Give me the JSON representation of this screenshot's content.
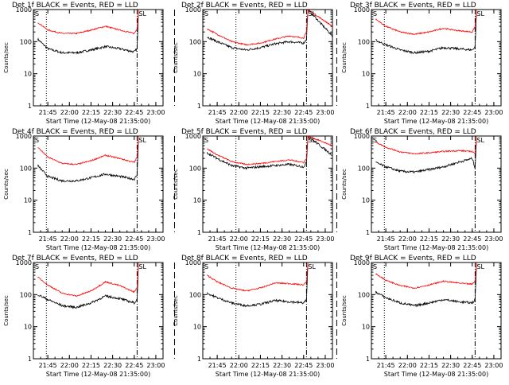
{
  "figure": {
    "panels": [
      {
        "title": "Det 1f BLACK = Events, RED = LLD",
        "ylabel": "Counts/sec",
        "xlabel": "Start Time (12-May-08 21:35:00)"
      },
      {
        "title": "Det 2f BLACK = Events, RED = LLD",
        "ylabel": "Counts/sec",
        "xlabel": "Start Time (12-May-08 21:35:00)"
      },
      {
        "title": "Det 3f BLACK = Events, RED = LLD",
        "ylabel": "Counts/sec",
        "xlabel": "Start Time (12-May-08 21:35:00)"
      },
      {
        "title": "Det 4f BLACK = Events, RED = LLD",
        "ylabel": "Counts/sec",
        "xlabel": "Start Time (12-May-08 21:35:00)"
      },
      {
        "title": "Det 5f BLACK = Events, RED = LLD",
        "ylabel": "Counts/sec",
        "xlabel": "Start Time (12-May-08 21:35:00)"
      },
      {
        "title": "Det 6f BLACK = Events, RED = LLD",
        "ylabel": "Counts/sec",
        "xlabel": "Start Time (12-May-08 21:35:00)"
      },
      {
        "title": "Det 7f BLACK = Events, RED = LLD",
        "ylabel": "Counts/sec",
        "xlabel": "Start Time (12-May-08 21:35:00)"
      },
      {
        "title": "Det 8f BLACK = Events, RED = LLD",
        "ylabel": "Counts/sec",
        "xlabel": "Start Time (12-May-08 21:35:00)"
      },
      {
        "title": "Det 9f BLACK = Events, RED = LLD",
        "ylabel": "Counts/sec",
        "xlabel": "Start Time (12-May-08 21:35:00)"
      }
    ],
    "x_tick_labels": [
      "21:45",
      "22:00",
      "22:15",
      "22:30",
      "22:45",
      "23:00"
    ],
    "y_tick_labels": [
      "1",
      "10",
      "100",
      "1000"
    ],
    "marker_labels": {
      "saa_start": "S",
      "saa_end": "SL"
    },
    "colors": {
      "events": "#000000",
      "lld": "#ff0000",
      "axes": "#000000",
      "background": "#ffffff"
    }
  },
  "chart_data": [
    {
      "type": "line",
      "title": "Det 1f BLACK = Events, RED = LLD",
      "xlabel": "Start Time (12-May-08 21:35:00)",
      "ylabel": "Counts/sec",
      "y_scale": "log",
      "ylim": [
        1,
        1000
      ],
      "xlim_minutes_after_start": [
        0,
        90
      ],
      "x": [
        "21:38",
        "21:45",
        "21:55",
        "22:05",
        "22:15",
        "22:25",
        "22:35",
        "22:45",
        "22:47",
        "22:48"
      ],
      "series": [
        {
          "name": "Events",
          "color": "#000000",
          "values": [
            120,
            60,
            45,
            45,
            55,
            70,
            60,
            48,
            60,
            1000
          ]
        },
        {
          "name": "LLD",
          "color": "#ff0000",
          "values": [
            400,
            230,
            180,
            180,
            230,
            300,
            230,
            180,
            250,
            1000
          ]
        }
      ],
      "vertical_lines": [
        {
          "time": "21:44",
          "style": "dotted"
        },
        {
          "time": "22:47",
          "style": "dash-dot"
        },
        {
          "time": "23:13",
          "style": "long-dash"
        }
      ]
    },
    {
      "type": "line",
      "title": "Det 2f BLACK = Events, RED = LLD",
      "xlabel": "Start Time (12-May-08 21:35:00)",
      "ylabel": "Counts/sec",
      "y_scale": "log",
      "ylim": [
        1,
        1000
      ],
      "xlim_minutes_after_start": [
        0,
        90
      ],
      "x": [
        "21:38",
        "21:45",
        "21:55",
        "22:05",
        "22:15",
        "22:25",
        "22:35",
        "22:45",
        "22:47",
        "22:48",
        "23:05"
      ],
      "series": [
        {
          "name": "Events",
          "color": "#000000",
          "values": [
            140,
            100,
            65,
            55,
            65,
            85,
            100,
            90,
            120,
            1000,
            150
          ]
        },
        {
          "name": "LLD",
          "color": "#ff0000",
          "values": [
            250,
            170,
            100,
            80,
            90,
            120,
            150,
            130,
            200,
            1000,
            300
          ]
        }
      ],
      "vertical_lines": [
        {
          "time": "21:58",
          "style": "dotted"
        },
        {
          "time": "22:47",
          "style": "dash-dot"
        },
        {
          "time": "23:08",
          "style": "long-dash"
        }
      ]
    },
    {
      "type": "line",
      "title": "Det 3f BLACK = Events, RED = LLD",
      "xlabel": "Start Time (12-May-08 21:35:00)",
      "ylabel": "Counts/sec",
      "y_scale": "log",
      "ylim": [
        1,
        1000
      ],
      "xlim_minutes_after_start": [
        0,
        90
      ],
      "x": [
        "21:38",
        "21:45",
        "21:55",
        "22:05",
        "22:15",
        "22:25",
        "22:35",
        "22:45",
        "22:47",
        "22:48"
      ],
      "series": [
        {
          "name": "Events",
          "color": "#000000",
          "values": [
            110,
            80,
            55,
            45,
            50,
            65,
            60,
            55,
            70,
            1000
          ]
        },
        {
          "name": "LLD",
          "color": "#ff0000",
          "values": [
            500,
            300,
            200,
            170,
            200,
            260,
            220,
            200,
            300,
            1000
          ]
        }
      ],
      "vertical_lines": [
        {
          "time": "21:44",
          "style": "dotted"
        },
        {
          "time": "22:47",
          "style": "dash-dot"
        },
        {
          "time": "23:13",
          "style": "long-dash"
        }
      ]
    },
    {
      "type": "line",
      "title": "Det 4f BLACK = Events, RED = LLD",
      "xlabel": "Start Time (12-May-08 21:35:00)",
      "ylabel": "Counts/sec",
      "y_scale": "log",
      "ylim": [
        1,
        1000
      ],
      "xlim_minutes_after_start": [
        0,
        90
      ],
      "x": [
        "21:38",
        "21:45",
        "21:55",
        "22:05",
        "22:15",
        "22:25",
        "22:35",
        "22:45",
        "22:47",
        "22:48"
      ],
      "series": [
        {
          "name": "Events",
          "color": "#000000",
          "values": [
            120,
            55,
            40,
            40,
            50,
            65,
            55,
            45,
            60,
            1000
          ]
        },
        {
          "name": "LLD",
          "color": "#ff0000",
          "values": [
            450,
            220,
            140,
            130,
            170,
            250,
            200,
            150,
            220,
            1000
          ]
        }
      ],
      "vertical_lines": [
        {
          "time": "21:44",
          "style": "dotted"
        },
        {
          "time": "22:47",
          "style": "dash-dot"
        },
        {
          "time": "23:13",
          "style": "long-dash"
        }
      ]
    },
    {
      "type": "line",
      "title": "Det 5f BLACK = Events, RED = LLD",
      "xlabel": "Start Time (12-May-08 21:35:00)",
      "ylabel": "Counts/sec",
      "y_scale": "log",
      "ylim": [
        1,
        1000
      ],
      "xlim_minutes_after_start": [
        0,
        90
      ],
      "x": [
        "21:38",
        "21:45",
        "21:55",
        "22:05",
        "22:15",
        "22:25",
        "22:35",
        "22:45",
        "22:47",
        "22:48",
        "23:05"
      ],
      "series": [
        {
          "name": "Events",
          "color": "#000000",
          "values": [
            300,
            200,
            120,
            100,
            110,
            120,
            130,
            110,
            150,
            1000,
            250
          ]
        },
        {
          "name": "LLD",
          "color": "#ff0000",
          "values": [
            400,
            260,
            160,
            130,
            140,
            160,
            180,
            150,
            200,
            1000,
            500
          ]
        }
      ],
      "vertical_lines": [
        {
          "time": "21:58",
          "style": "dotted"
        },
        {
          "time": "22:47",
          "style": "dash-dot"
        },
        {
          "time": "23:08",
          "style": "long-dash"
        }
      ]
    },
    {
      "type": "line",
      "title": "Det 6f BLACK = Events, RED = LLD",
      "xlabel": "Start Time (12-May-08 21:35:00)",
      "ylabel": "Counts/sec",
      "y_scale": "log",
      "ylim": [
        1,
        1000
      ],
      "xlim_minutes_after_start": [
        0,
        90
      ],
      "x": [
        "21:38",
        "21:45",
        "21:55",
        "22:05",
        "22:15",
        "22:25",
        "22:35",
        "22:45",
        "22:47",
        "22:48"
      ],
      "series": [
        {
          "name": "Events",
          "color": "#000000",
          "values": [
            150,
            110,
            80,
            75,
            90,
            110,
            150,
            200,
            100,
            1000
          ]
        },
        {
          "name": "LLD",
          "color": "#ff0000",
          "values": [
            650,
            450,
            320,
            280,
            300,
            330,
            350,
            330,
            280,
            1000
          ]
        }
      ],
      "vertical_lines": [
        {
          "time": "21:44",
          "style": "dotted"
        },
        {
          "time": "22:47",
          "style": "dash-dot"
        },
        {
          "time": "23:13",
          "style": "long-dash"
        }
      ]
    },
    {
      "type": "line",
      "title": "Det 7f BLACK = Events, RED = LLD",
      "xlabel": "Start Time (12-May-08 21:35:00)",
      "ylabel": "Counts/sec",
      "y_scale": "log",
      "ylim": [
        1,
        1000
      ],
      "xlim_minutes_after_start": [
        0,
        90
      ],
      "x": [
        "21:38",
        "21:45",
        "21:55",
        "22:05",
        "22:15",
        "22:25",
        "22:35",
        "22:45",
        "22:47",
        "22:48"
      ],
      "series": [
        {
          "name": "Events",
          "color": "#000000",
          "values": [
            100,
            70,
            45,
            40,
            55,
            90,
            75,
            55,
            70,
            1000
          ]
        },
        {
          "name": "LLD",
          "color": "#ff0000",
          "values": [
            350,
            200,
            110,
            90,
            130,
            250,
            190,
            120,
            170,
            1000
          ]
        }
      ],
      "vertical_lines": [
        {
          "time": "21:44",
          "style": "dotted"
        },
        {
          "time": "22:47",
          "style": "dash-dot"
        },
        {
          "time": "23:13",
          "style": "long-dash"
        }
      ]
    },
    {
      "type": "line",
      "title": "Det 8f BLACK = Events, RED = LLD",
      "xlabel": "Start Time (12-May-08 21:35:00)",
      "ylabel": "Counts/sec",
      "y_scale": "log",
      "ylim": [
        1,
        1000
      ],
      "xlim_minutes_after_start": [
        0,
        90
      ],
      "x": [
        "21:38",
        "21:45",
        "21:55",
        "22:05",
        "22:15",
        "22:25",
        "22:35",
        "22:45",
        "22:47",
        "22:48"
      ],
      "series": [
        {
          "name": "Events",
          "color": "#000000",
          "values": [
            110,
            80,
            55,
            45,
            50,
            65,
            60,
            55,
            70,
            1000
          ]
        },
        {
          "name": "LLD",
          "color": "#ff0000",
          "values": [
            400,
            250,
            160,
            130,
            160,
            230,
            220,
            200,
            250,
            1000
          ]
        }
      ],
      "vertical_lines": [
        {
          "time": "21:58",
          "style": "dotted"
        },
        {
          "time": "22:47",
          "style": "dash-dot"
        },
        {
          "time": "23:08",
          "style": "long-dash"
        }
      ]
    },
    {
      "type": "line",
      "title": "Det 9f BLACK = Events, RED = LLD",
      "xlabel": "Start Time (12-May-08 21:35:00)",
      "ylabel": "Counts/sec",
      "y_scale": "log",
      "ylim": [
        1,
        1000
      ],
      "xlim_minutes_after_start": [
        0,
        90
      ],
      "x": [
        "21:38",
        "21:45",
        "21:55",
        "22:05",
        "22:15",
        "22:25",
        "22:35",
        "22:45",
        "22:47",
        "22:48"
      ],
      "series": [
        {
          "name": "Events",
          "color": "#000000",
          "values": [
            120,
            80,
            55,
            45,
            55,
            70,
            60,
            55,
            70,
            1000
          ]
        },
        {
          "name": "LLD",
          "color": "#ff0000",
          "values": [
            450,
            280,
            190,
            160,
            200,
            260,
            230,
            210,
            270,
            1000
          ]
        }
      ],
      "vertical_lines": [
        {
          "time": "21:44",
          "style": "dotted"
        },
        {
          "time": "22:47",
          "style": "dash-dot"
        },
        {
          "time": "23:13",
          "style": "long-dash"
        }
      ]
    }
  ]
}
